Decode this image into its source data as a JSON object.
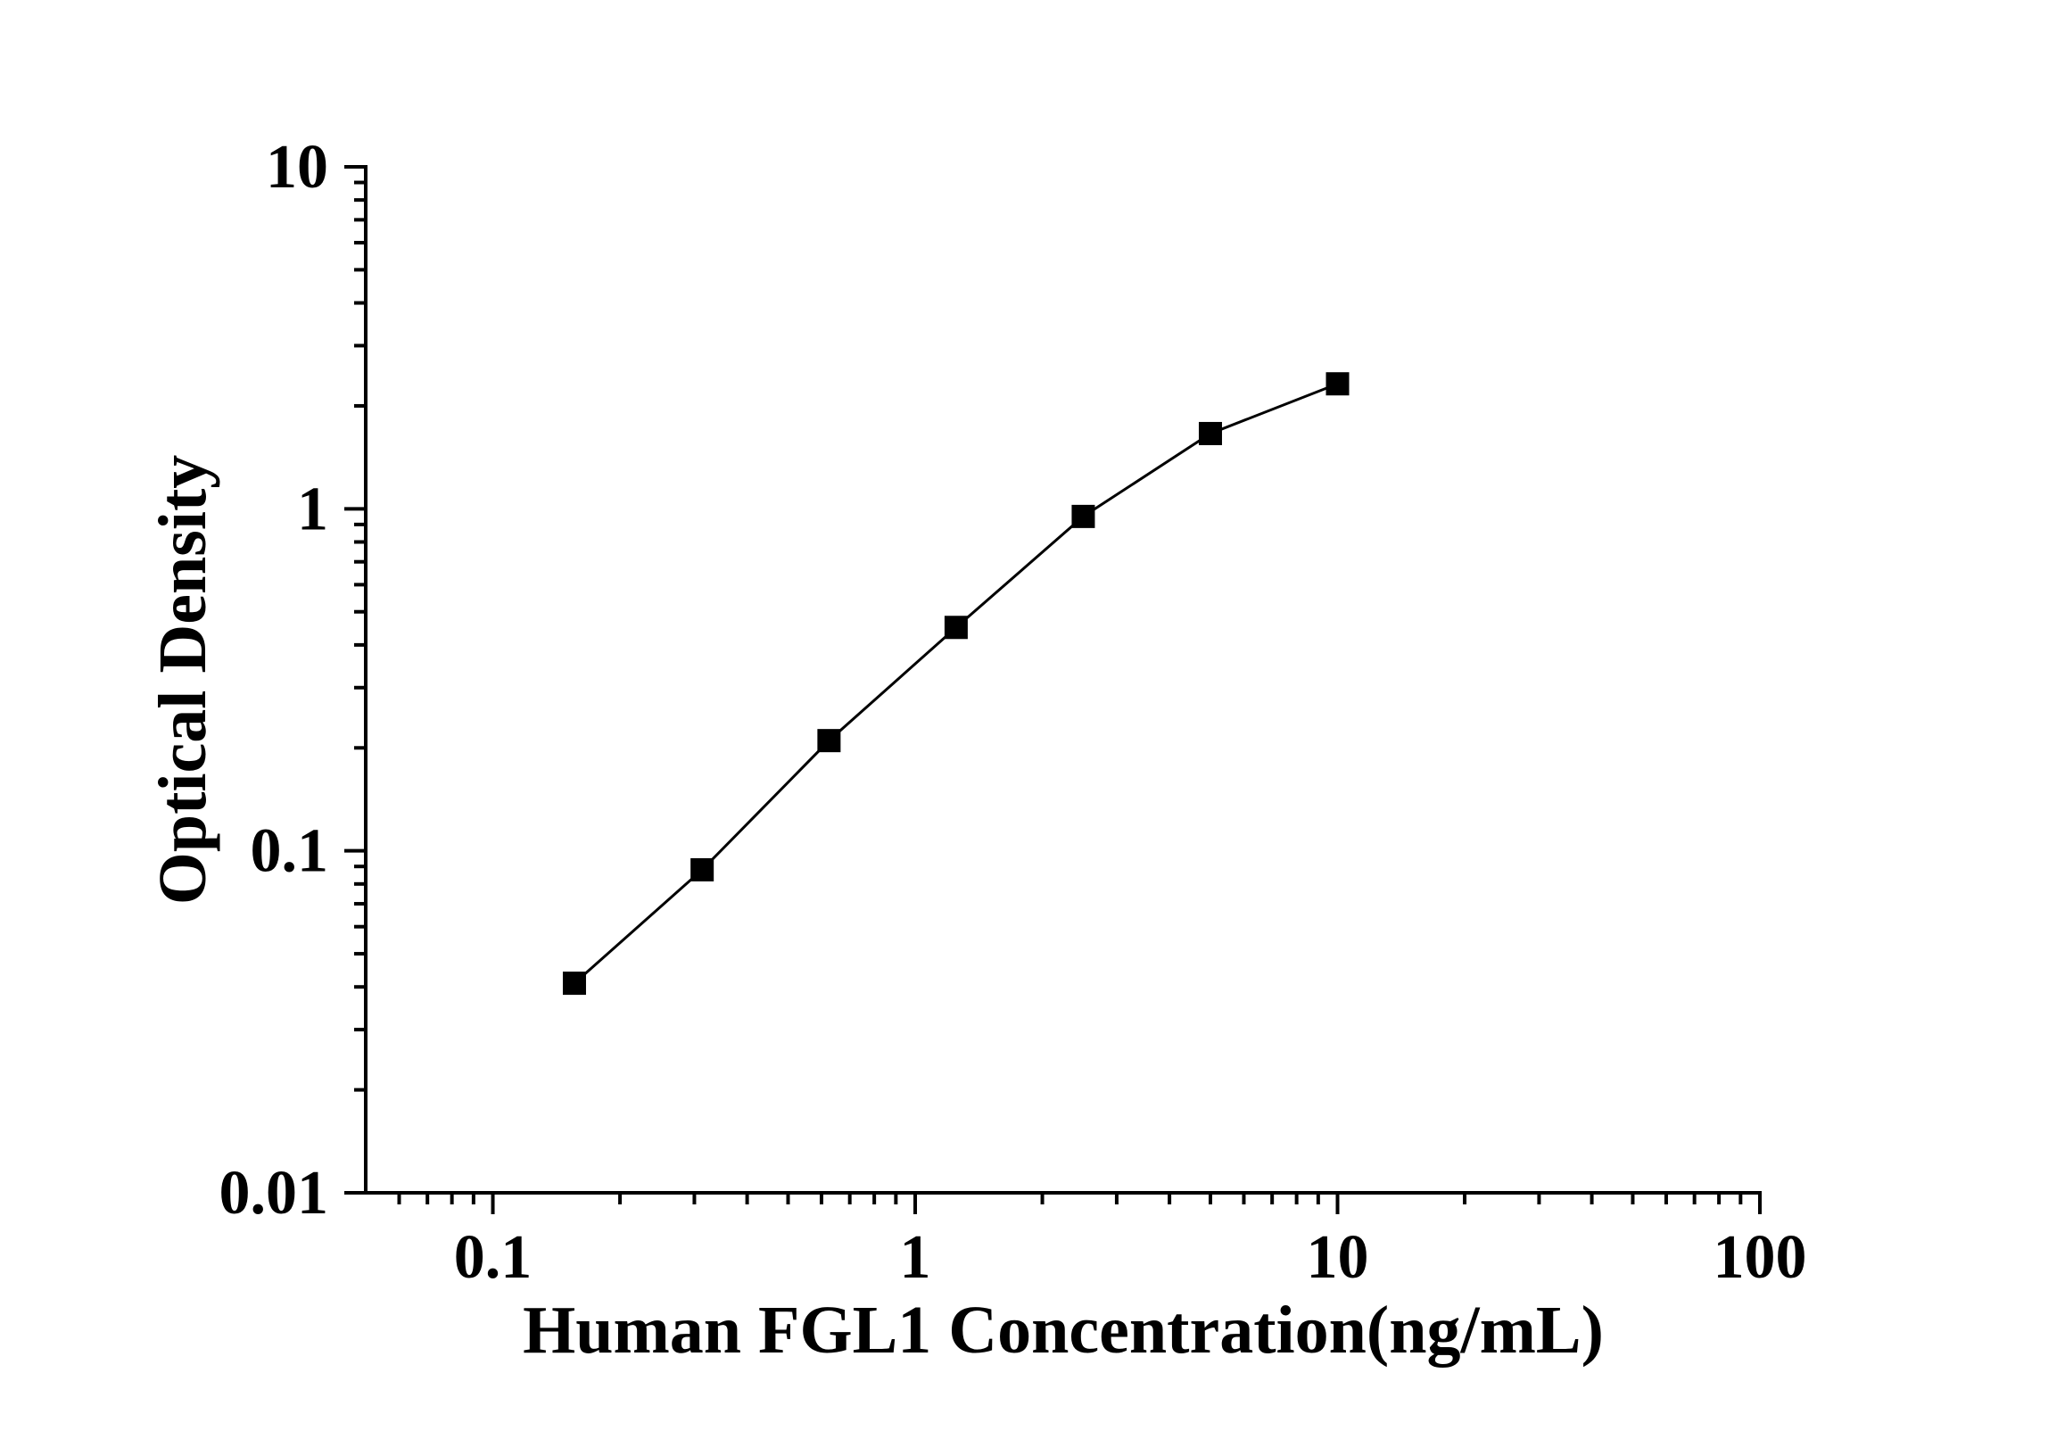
{
  "figure": {
    "background_color": "#ffffff",
    "foreground_color": "#000000"
  },
  "chart_data": {
    "type": "line",
    "title": "",
    "xlabel": "Human FGL1 Concentration(ng/mL)",
    "ylabel": "Optical Density",
    "x_scale": "log",
    "y_scale": "log",
    "xlim": [
      0.05,
      100
    ],
    "ylim": [
      0.01,
      10
    ],
    "x_major_ticks": [
      0.1,
      1,
      10,
      100
    ],
    "x_major_tick_labels": [
      "0.1",
      "1",
      "10",
      "100"
    ],
    "y_major_ticks": [
      0.01,
      0.1,
      1,
      10
    ],
    "y_major_tick_labels": [
      "0.01",
      "0.1",
      "1",
      "10"
    ],
    "minor_ticks": "log-decades-2-to-9",
    "grid": false,
    "legend": false,
    "series": [
      {
        "name": "standard_curve",
        "marker": "filled-square",
        "color": "#000000",
        "x": [
          0.156,
          0.313,
          0.625,
          1.25,
          2.5,
          5,
          10
        ],
        "y": [
          0.041,
          0.088,
          0.21,
          0.45,
          0.95,
          1.66,
          2.32
        ]
      }
    ]
  }
}
